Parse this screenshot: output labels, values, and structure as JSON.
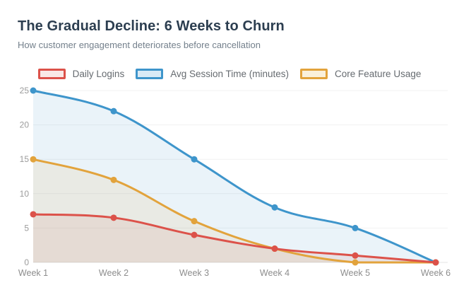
{
  "header": {
    "title": "The Gradual Decline: 6 Weeks to Churn",
    "subtitle": "How customer engagement deteriorates before cancellation"
  },
  "chart_data": {
    "type": "line",
    "title": "The Gradual Decline: 6 Weeks to Churn",
    "subtitle": "How customer engagement deteriorates before cancellation",
    "categories": [
      "Week 1",
      "Week 2",
      "Week 3",
      "Week 4",
      "Week 5",
      "Week 6"
    ],
    "series": [
      {
        "name": "Daily Logins",
        "color": "#dc524a",
        "tint": "#f9e8e6",
        "values": [
          7,
          6.5,
          4,
          2,
          1,
          0
        ]
      },
      {
        "name": "Avg Session Time (minutes)",
        "color": "#3e95cb",
        "tint": "#d9eaf6",
        "values": [
          25,
          22,
          15,
          8,
          5,
          0
        ]
      },
      {
        "name": "Core Feature Usage",
        "color": "#e2a33c",
        "tint": "#faf0da",
        "values": [
          15,
          12,
          6,
          2,
          0,
          0
        ]
      }
    ],
    "xlabel": "",
    "ylabel": "",
    "ylim": [
      0,
      25
    ],
    "yticks": [
      0,
      5,
      10,
      15,
      20,
      25
    ],
    "grid": "horizontal-only",
    "legend_position": "top",
    "smooth": true,
    "area_fill": true,
    "fill_opacity": 0.11,
    "colors": {
      "background": "#ffffff",
      "grid_line": "#f1f1f1",
      "baseline": "#e6e6e6",
      "y_tick_label": "#9b9b9b",
      "x_tick_label": "#8d8d8d",
      "title": "#2c3e50",
      "subtitle": "#74808c",
      "legend_label": "#666b70"
    }
  }
}
